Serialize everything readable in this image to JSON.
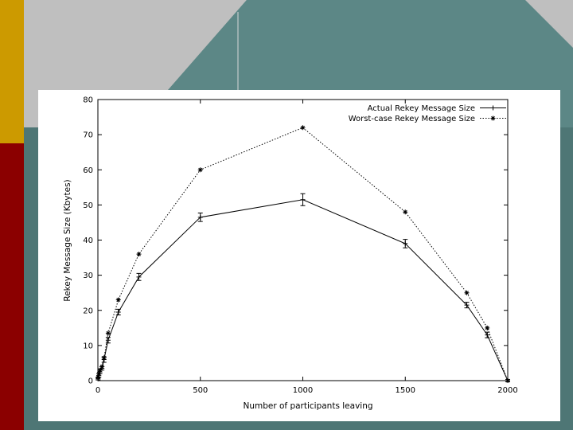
{
  "colors": {
    "gold": "#cc9a00",
    "maroon": "#8b0000",
    "teal": "#3f7372",
    "gray": "#bfbfbf",
    "panel": "#ffffff"
  },
  "chart_data": {
    "type": "line",
    "title": "",
    "xlabel": "Number of participants leaving",
    "ylabel": "Rekey Message Size (Kbytes)",
    "xlim": [
      0,
      2000
    ],
    "ylim": [
      0,
      80
    ],
    "xticks": [
      0,
      500,
      1000,
      1500,
      2000
    ],
    "yticks": [
      0,
      10,
      20,
      30,
      40,
      50,
      60,
      70,
      80
    ],
    "grid": false,
    "legend": "top-right",
    "series": [
      {
        "name": "Actual Rekey Message Size",
        "style": "solid",
        "marker": "plus",
        "error_bars": true,
        "x": [
          1,
          5,
          10,
          20,
          30,
          50,
          100,
          200,
          500,
          1000,
          1500,
          1800,
          1900,
          2000
        ],
        "values": [
          0.5,
          1.5,
          2.5,
          3.5,
          6,
          11.5,
          19.5,
          29.5,
          46.5,
          51.5,
          39,
          21.5,
          13,
          0
        ],
        "errors": [
          0.3,
          0.5,
          0.5,
          0.5,
          0.8,
          0.8,
          0.8,
          1,
          1.2,
          1.7,
          1.2,
          0.8,
          0.8,
          0.3
        ]
      },
      {
        "name": "Worst-case Rekey Message Size",
        "style": "dotted",
        "marker": "star",
        "error_bars": false,
        "x": [
          1,
          5,
          10,
          20,
          30,
          50,
          100,
          200,
          500,
          1000,
          1500,
          1800,
          1900,
          2000
        ],
        "values": [
          1,
          2,
          3,
          4,
          6.5,
          13.5,
          23,
          36,
          60,
          72,
          48,
          25,
          15,
          0
        ]
      }
    ]
  }
}
